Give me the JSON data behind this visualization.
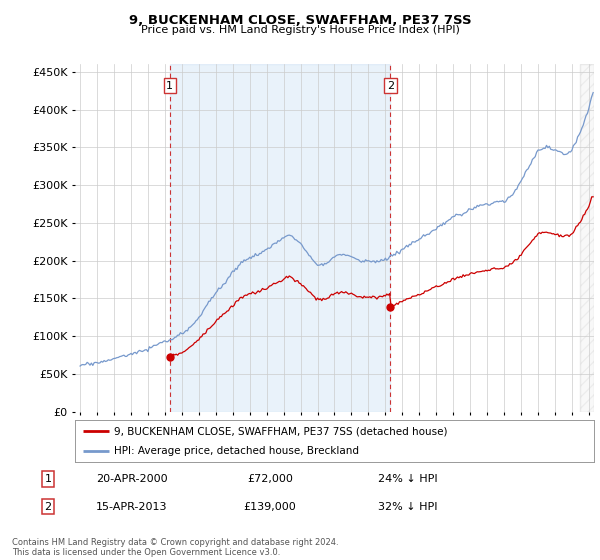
{
  "title": "9, BUCKENHAM CLOSE, SWAFFHAM, PE37 7SS",
  "subtitle": "Price paid vs. HM Land Registry's House Price Index (HPI)",
  "legend_label_red": "9, BUCKENHAM CLOSE, SWAFFHAM, PE37 7SS (detached house)",
  "legend_label_blue": "HPI: Average price, detached house, Breckland",
  "footnote": "Contains HM Land Registry data © Crown copyright and database right 2024.\nThis data is licensed under the Open Government Licence v3.0.",
  "annotation1_label": "1",
  "annotation1_date": "20-APR-2000",
  "annotation1_price": "£72,000",
  "annotation1_hpi": "24% ↓ HPI",
  "annotation2_label": "2",
  "annotation2_date": "15-APR-2013",
  "annotation2_price": "£139,000",
  "annotation2_hpi": "32% ↓ HPI",
  "red_color": "#cc0000",
  "blue_color": "#7799cc",
  "bg_color": "#ffffff",
  "grid_color": "#cccccc",
  "shade_color": "#ddeeff",
  "ylim": [
    0,
    460000
  ],
  "yticks": [
    0,
    50000,
    100000,
    150000,
    200000,
    250000,
    300000,
    350000,
    400000,
    450000
  ],
  "sale1_x": 2000.29,
  "sale1_y": 72000,
  "sale2_x": 2013.29,
  "sale2_y": 139000,
  "vline1_x": 2000.29,
  "vline2_x": 2013.29,
  "xlim_left": 1994.7,
  "xlim_right": 2025.3,
  "hpi_at_sale1": 94500,
  "hpi_at_sale2": 204000
}
